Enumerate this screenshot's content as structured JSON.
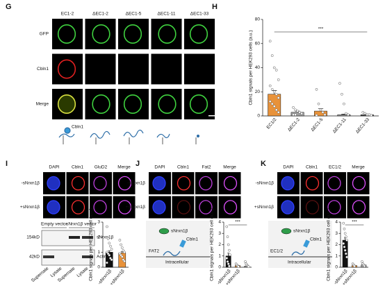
{
  "panel_labels": [
    "G",
    "H",
    "I",
    "J",
    "K"
  ],
  "g": {
    "columns": [
      "EC1-2",
      "ΔEC1-2",
      "ΔEC1-5",
      "ΔEC1-11",
      "ΔEC1-33"
    ],
    "rows": [
      "GFP",
      "Cbln1",
      "Merge"
    ],
    "cartoon_label": "Cbln1"
  },
  "i": {
    "columns": [
      "DAPI",
      "Cbln1",
      "GluD2",
      "Merge"
    ],
    "rows": [
      "-sNrxn1β",
      "+sNrxn1β"
    ],
    "blot": {
      "groups": [
        "Empty vector",
        "sNrxn1β vector"
      ],
      "sizes": [
        "154kD",
        "42kD"
      ],
      "bands": [
        "sNrxn1β",
        "Actin"
      ],
      "lanes": [
        "Supernate",
        "Lysate",
        "Supernate",
        "Lysate"
      ]
    }
  },
  "j": {
    "columns": [
      "DAPI",
      "Cbln1",
      "Fat2",
      "Merge"
    ],
    "rows": [
      "-sNrxn1β",
      "+sNrxn1β"
    ],
    "cartoon": [
      "sNrxn1β",
      "Cbln1",
      "FAT2",
      "Intracellular"
    ]
  },
  "k": {
    "columns": [
      "DAPI",
      "Cbln1",
      "EC1/2",
      "Merge"
    ],
    "rows": [
      "-sNrxn1β",
      "+sNrxn1β"
    ],
    "cartoon": [
      "sNrxn1β",
      "Cbln1",
      "EC1/2",
      "Intracellular"
    ]
  },
  "chart_data": [
    {
      "type": "bar",
      "y_label": "Cbln1 signals per HEK293 cells (a.u.)",
      "categories": [
        "EC1/2",
        "ΔEC1-2",
        "ΔEC1-5",
        "ΔEC1-11",
        "ΔEC1-33"
      ],
      "values": [
        18,
        3,
        4,
        1,
        1
      ],
      "errors": [
        3,
        1,
        2,
        0.5,
        0.5
      ],
      "colors": [
        "#e8923a",
        "#9e9e9e",
        "#e8923a",
        "#9e9e9e",
        "#555555"
      ],
      "points": [
        [
          62,
          50,
          40,
          38,
          30,
          25,
          22,
          20,
          18,
          15,
          12,
          10,
          8,
          5,
          3
        ],
        [
          7,
          5,
          4,
          3,
          2,
          1,
          1
        ],
        [
          22,
          10,
          5,
          3,
          1,
          0.5
        ],
        [
          27,
          18,
          10,
          2,
          1
        ],
        [
          3,
          2,
          1,
          1,
          0.5
        ]
      ],
      "ylim": [
        0,
        80
      ],
      "yticks": [
        0,
        20,
        40,
        60,
        80
      ],
      "annotation": "***"
    },
    {
      "type": "bar",
      "y_label": "Cbln1 signals per HEK293 cell (a.u.)",
      "categories": [
        "-sNrxn1β",
        "+sNrxn1β"
      ],
      "values": [
        1.0,
        0.95
      ],
      "errors": [
        0.1,
        0.08
      ],
      "colors": [
        "#111111",
        "#e8923a"
      ],
      "points": [
        [
          2.7,
          1.9,
          1.6,
          1.4,
          1.2,
          1.0,
          0.9,
          0.8,
          0.6,
          0.5,
          0.3
        ],
        [
          1.8,
          1.5,
          1.3,
          1.1,
          1.0,
          0.9,
          0.8,
          0.7,
          0.5,
          0.4
        ]
      ],
      "ylim": [
        0,
        3
      ],
      "yticks": [
        0,
        1,
        2,
        3
      ]
    },
    {
      "type": "bar",
      "y_label": "Cbln1 signals per HEK293 cell (a.u.)",
      "categories": [
        "-sNrxn1β",
        "+sNrxn1β",
        null
      ],
      "values": [
        1.0,
        0.15,
        0.1
      ],
      "errors": [
        0.25,
        0.03,
        0.03
      ],
      "colors": [
        "#111111",
        "#e8923a",
        "#9e9e9e"
      ],
      "points": [
        [
          3.6,
          2.7,
          2.0,
          1.5,
          1.1,
          0.8,
          0.5,
          0.3,
          0.1
        ],
        [
          0.3,
          0.2,
          0.1,
          0.05
        ],
        [
          0.5,
          0.3,
          0.2,
          0.1,
          0.05
        ]
      ],
      "ylim": [
        0,
        4
      ],
      "yticks": [
        0,
        1,
        2,
        3,
        4
      ],
      "annotation": "***"
    },
    {
      "type": "bar",
      "y_label": "Cbln1 signals per HEK293 cell (a.u.)",
      "categories": [
        "-sNrxn1β",
        "+sNrxn1β",
        null
      ],
      "values": [
        2.4,
        0.15,
        0.2
      ],
      "errors": [
        0.2,
        0.03,
        0.04
      ],
      "colors": [
        "#111111",
        "#e8923a",
        "#9e9e9e"
      ],
      "points": [
        [
          3.9,
          3.4,
          3.0,
          2.7,
          2.4,
          2.1,
          1.8,
          1.5,
          1.2,
          0.9
        ],
        [
          0.3,
          0.2,
          0.1
        ],
        [
          0.5,
          0.3,
          0.2,
          0.1
        ]
      ],
      "ylim": [
        0,
        4
      ],
      "yticks": [
        0,
        1,
        2,
        3,
        4
      ],
      "annotation": "***"
    }
  ]
}
